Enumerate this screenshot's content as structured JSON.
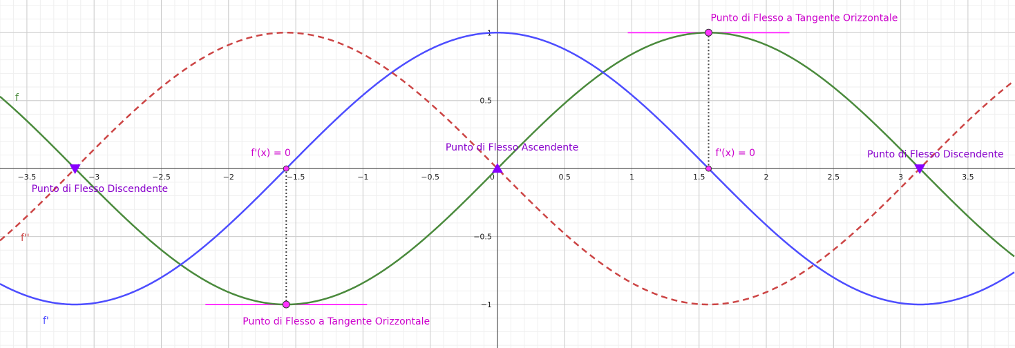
{
  "chart_data": {
    "type": "line",
    "xlim": [
      -3.7,
      3.85
    ],
    "ylim": [
      -1.32,
      1.24
    ],
    "grid": true,
    "x_ticks": [
      -3.5,
      -3,
      -2.5,
      -2,
      -1.5,
      -1,
      -0.5,
      0,
      0.5,
      1,
      1.5,
      2,
      2.5,
      3,
      3.5
    ],
    "x_tick_labels": [
      "−3.5",
      "−3",
      "−2.5",
      "−2",
      "−1.5",
      "−1",
      "−0.5",
      "0",
      "0.5",
      "1",
      "1.5",
      "2",
      "2.5",
      "3",
      "3.5"
    ],
    "y_ticks": [
      1,
      0.5,
      -0.5,
      -1
    ],
    "y_tick_labels": [
      "1",
      "0.5",
      "−0.5",
      "−1"
    ],
    "colors": {
      "f": "#4a8a3c",
      "f_prime": "#4d4dff",
      "f_double_prime": "#cc4444",
      "tangent": "#ff33ff",
      "inflection": "#8800ff",
      "label_magenta": "#cc00cc",
      "label_purple": "#8800cc"
    },
    "series": [
      {
        "name": "f",
        "function": "sin",
        "x": [
          -3.7,
          -3.1416,
          -1.5708,
          0,
          1.5708,
          3.1416,
          3.85
        ],
        "y": [
          0.53,
          0,
          -1,
          0,
          1,
          0,
          -0.65
        ]
      },
      {
        "name": "f'",
        "function": "cos",
        "x": [
          -3.7,
          -3.1416,
          -1.5708,
          0,
          1.5708,
          3.1416,
          3.85
        ],
        "y": [
          -0.85,
          -1,
          0,
          1,
          0,
          -1,
          -0.76
        ]
      },
      {
        "name": "f''",
        "function": "-sin",
        "x": [
          -3.7,
          -3.1416,
          -1.5708,
          0,
          1.5708,
          3.1416,
          3.85
        ],
        "y": [
          -0.53,
          0,
          1,
          0,
          -1,
          0,
          0.65
        ]
      }
    ],
    "inflection_points": [
      {
        "x": -3.1416,
        "y": 0,
        "marker": "triangle-down",
        "label": "Punto di Flesso Discendente"
      },
      {
        "x": 0,
        "y": 0,
        "marker": "triangle-up",
        "label": "Punto di Flesso Ascendente"
      },
      {
        "x": 3.1416,
        "y": 0,
        "marker": "triangle-down",
        "label": "Punto di Flesso Discendente"
      }
    ],
    "tangent_points": [
      {
        "x": -1.5708,
        "y": -1,
        "label": "Punto di Flesso a Tangente Orizzontale",
        "zero_label": "f'(x) = 0"
      },
      {
        "x": 1.5708,
        "y": 1,
        "label": "Punto di Flesso a Tangente Orizzontale",
        "zero_label": "f'(x) = 0"
      }
    ],
    "curve_labels": [
      "f",
      "f'",
      "f''"
    ]
  }
}
